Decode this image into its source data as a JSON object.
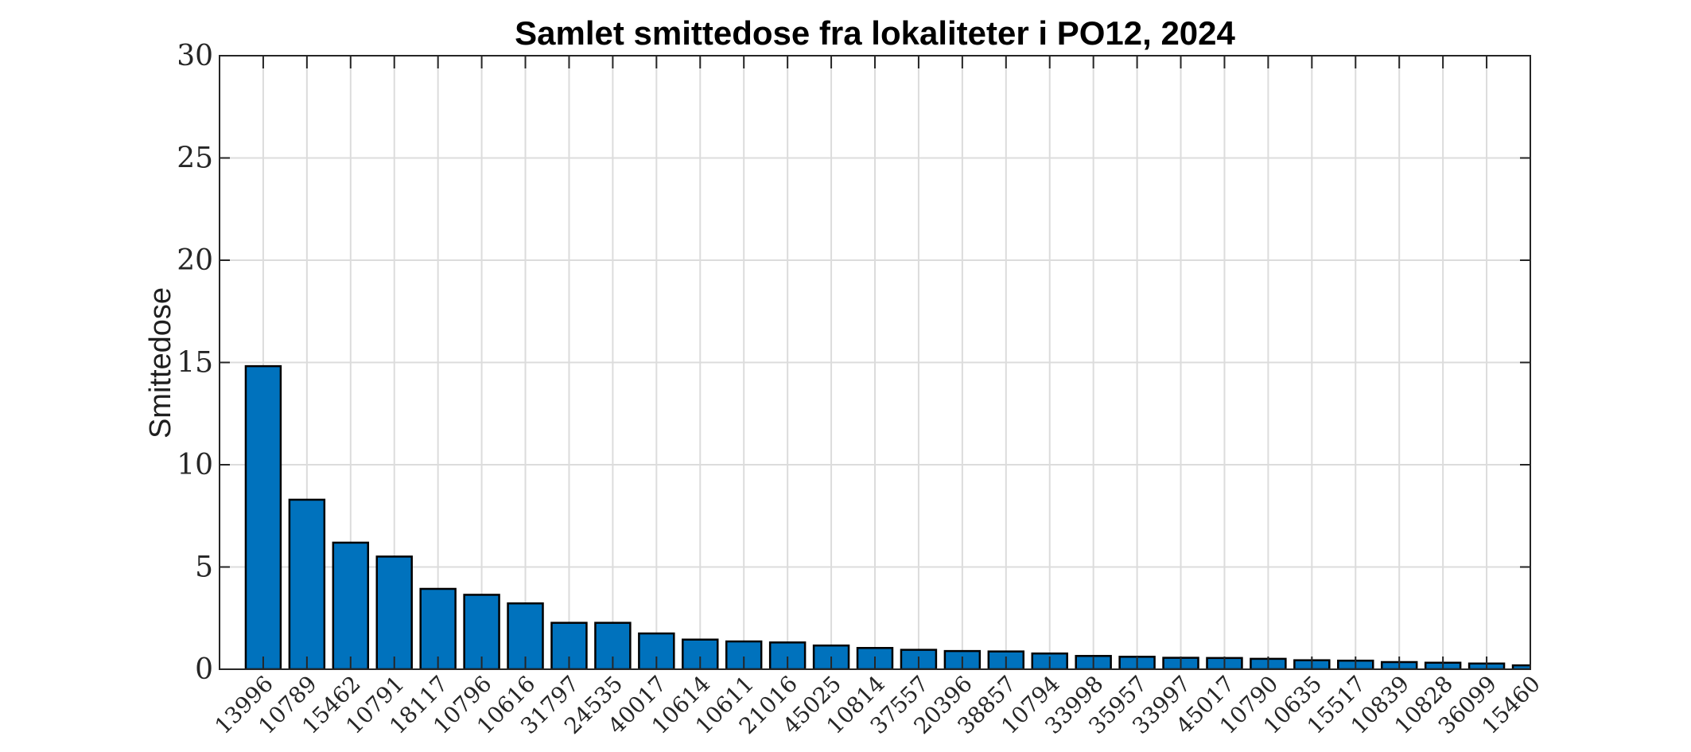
{
  "chart_data": {
    "type": "bar",
    "title": "Samlet smittedose fra lokaliteter i PO12, 2024",
    "xlabel": "",
    "ylabel": "Smittedose",
    "ylim": [
      0,
      30
    ],
    "xlim": [
      0,
      30
    ],
    "yticks": [
      0,
      5,
      10,
      15,
      20,
      25,
      30
    ],
    "grid": true,
    "legend": null,
    "bar_color": "#0072BD",
    "bar_edge_color": "#000000",
    "categories": [
      "13996",
      "10789",
      "15462",
      "10791",
      "18117",
      "10796",
      "10616",
      "31797",
      "24535",
      "40017",
      "10614",
      "10611",
      "21016",
      "45025",
      "10814",
      "37557",
      "20396",
      "38857",
      "10794",
      "33998",
      "35957",
      "33997",
      "45017",
      "10790",
      "10635",
      "15517",
      "10839",
      "10828",
      "36099",
      "15460"
    ],
    "values": [
      14.82,
      8.29,
      6.19,
      5.51,
      3.93,
      3.64,
      3.22,
      2.27,
      2.27,
      1.75,
      1.45,
      1.36,
      1.31,
      1.16,
      1.04,
      0.95,
      0.89,
      0.87,
      0.77,
      0.65,
      0.61,
      0.56,
      0.55,
      0.51,
      0.44,
      0.42,
      0.35,
      0.32,
      0.28,
      0.19
    ]
  }
}
